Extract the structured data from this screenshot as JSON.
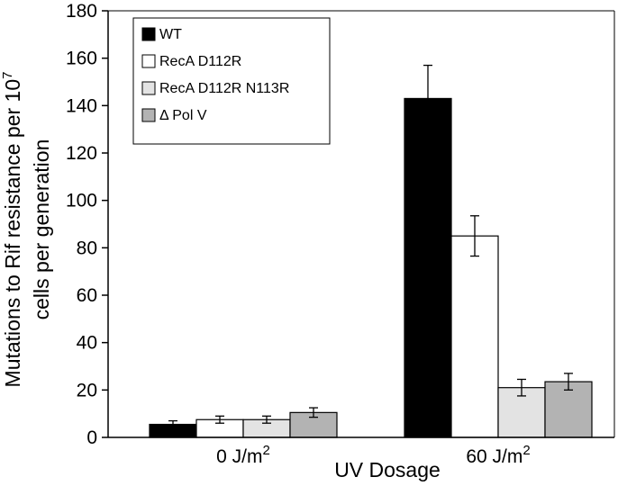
{
  "chart_data": {
    "type": "bar",
    "categories": [
      "0 J/m",
      "60 J/m"
    ],
    "category_superscript": "2",
    "series": [
      {
        "name": "WT",
        "color": "#000000",
        "values": [
          5.5,
          143
        ],
        "errors": [
          1.5,
          14
        ]
      },
      {
        "name": "RecA D112R",
        "color": "#ffffff",
        "values": [
          7.5,
          85
        ],
        "errors": [
          1.5,
          8.5
        ]
      },
      {
        "name": "RecA D112R N113R",
        "color": "#e3e3e3",
        "values": [
          7.5,
          21
        ],
        "errors": [
          1.5,
          3.5
        ]
      },
      {
        "name": "Δ Pol V",
        "color": "#b3b3b3",
        "values": [
          10.5,
          23.5
        ],
        "errors": [
          2,
          3.5
        ]
      }
    ],
    "xlabel": "UV Dosage",
    "ylabel_line1": "Mutations to Rif resistance per 10",
    "ylabel_superscript": "7",
    "ylabel_line2": "cells per generation",
    "ylim": [
      0,
      180
    ],
    "yticks": [
      0,
      20,
      40,
      60,
      80,
      100,
      120,
      140,
      160,
      180
    ],
    "grid": false,
    "legend_position": "top-left"
  }
}
